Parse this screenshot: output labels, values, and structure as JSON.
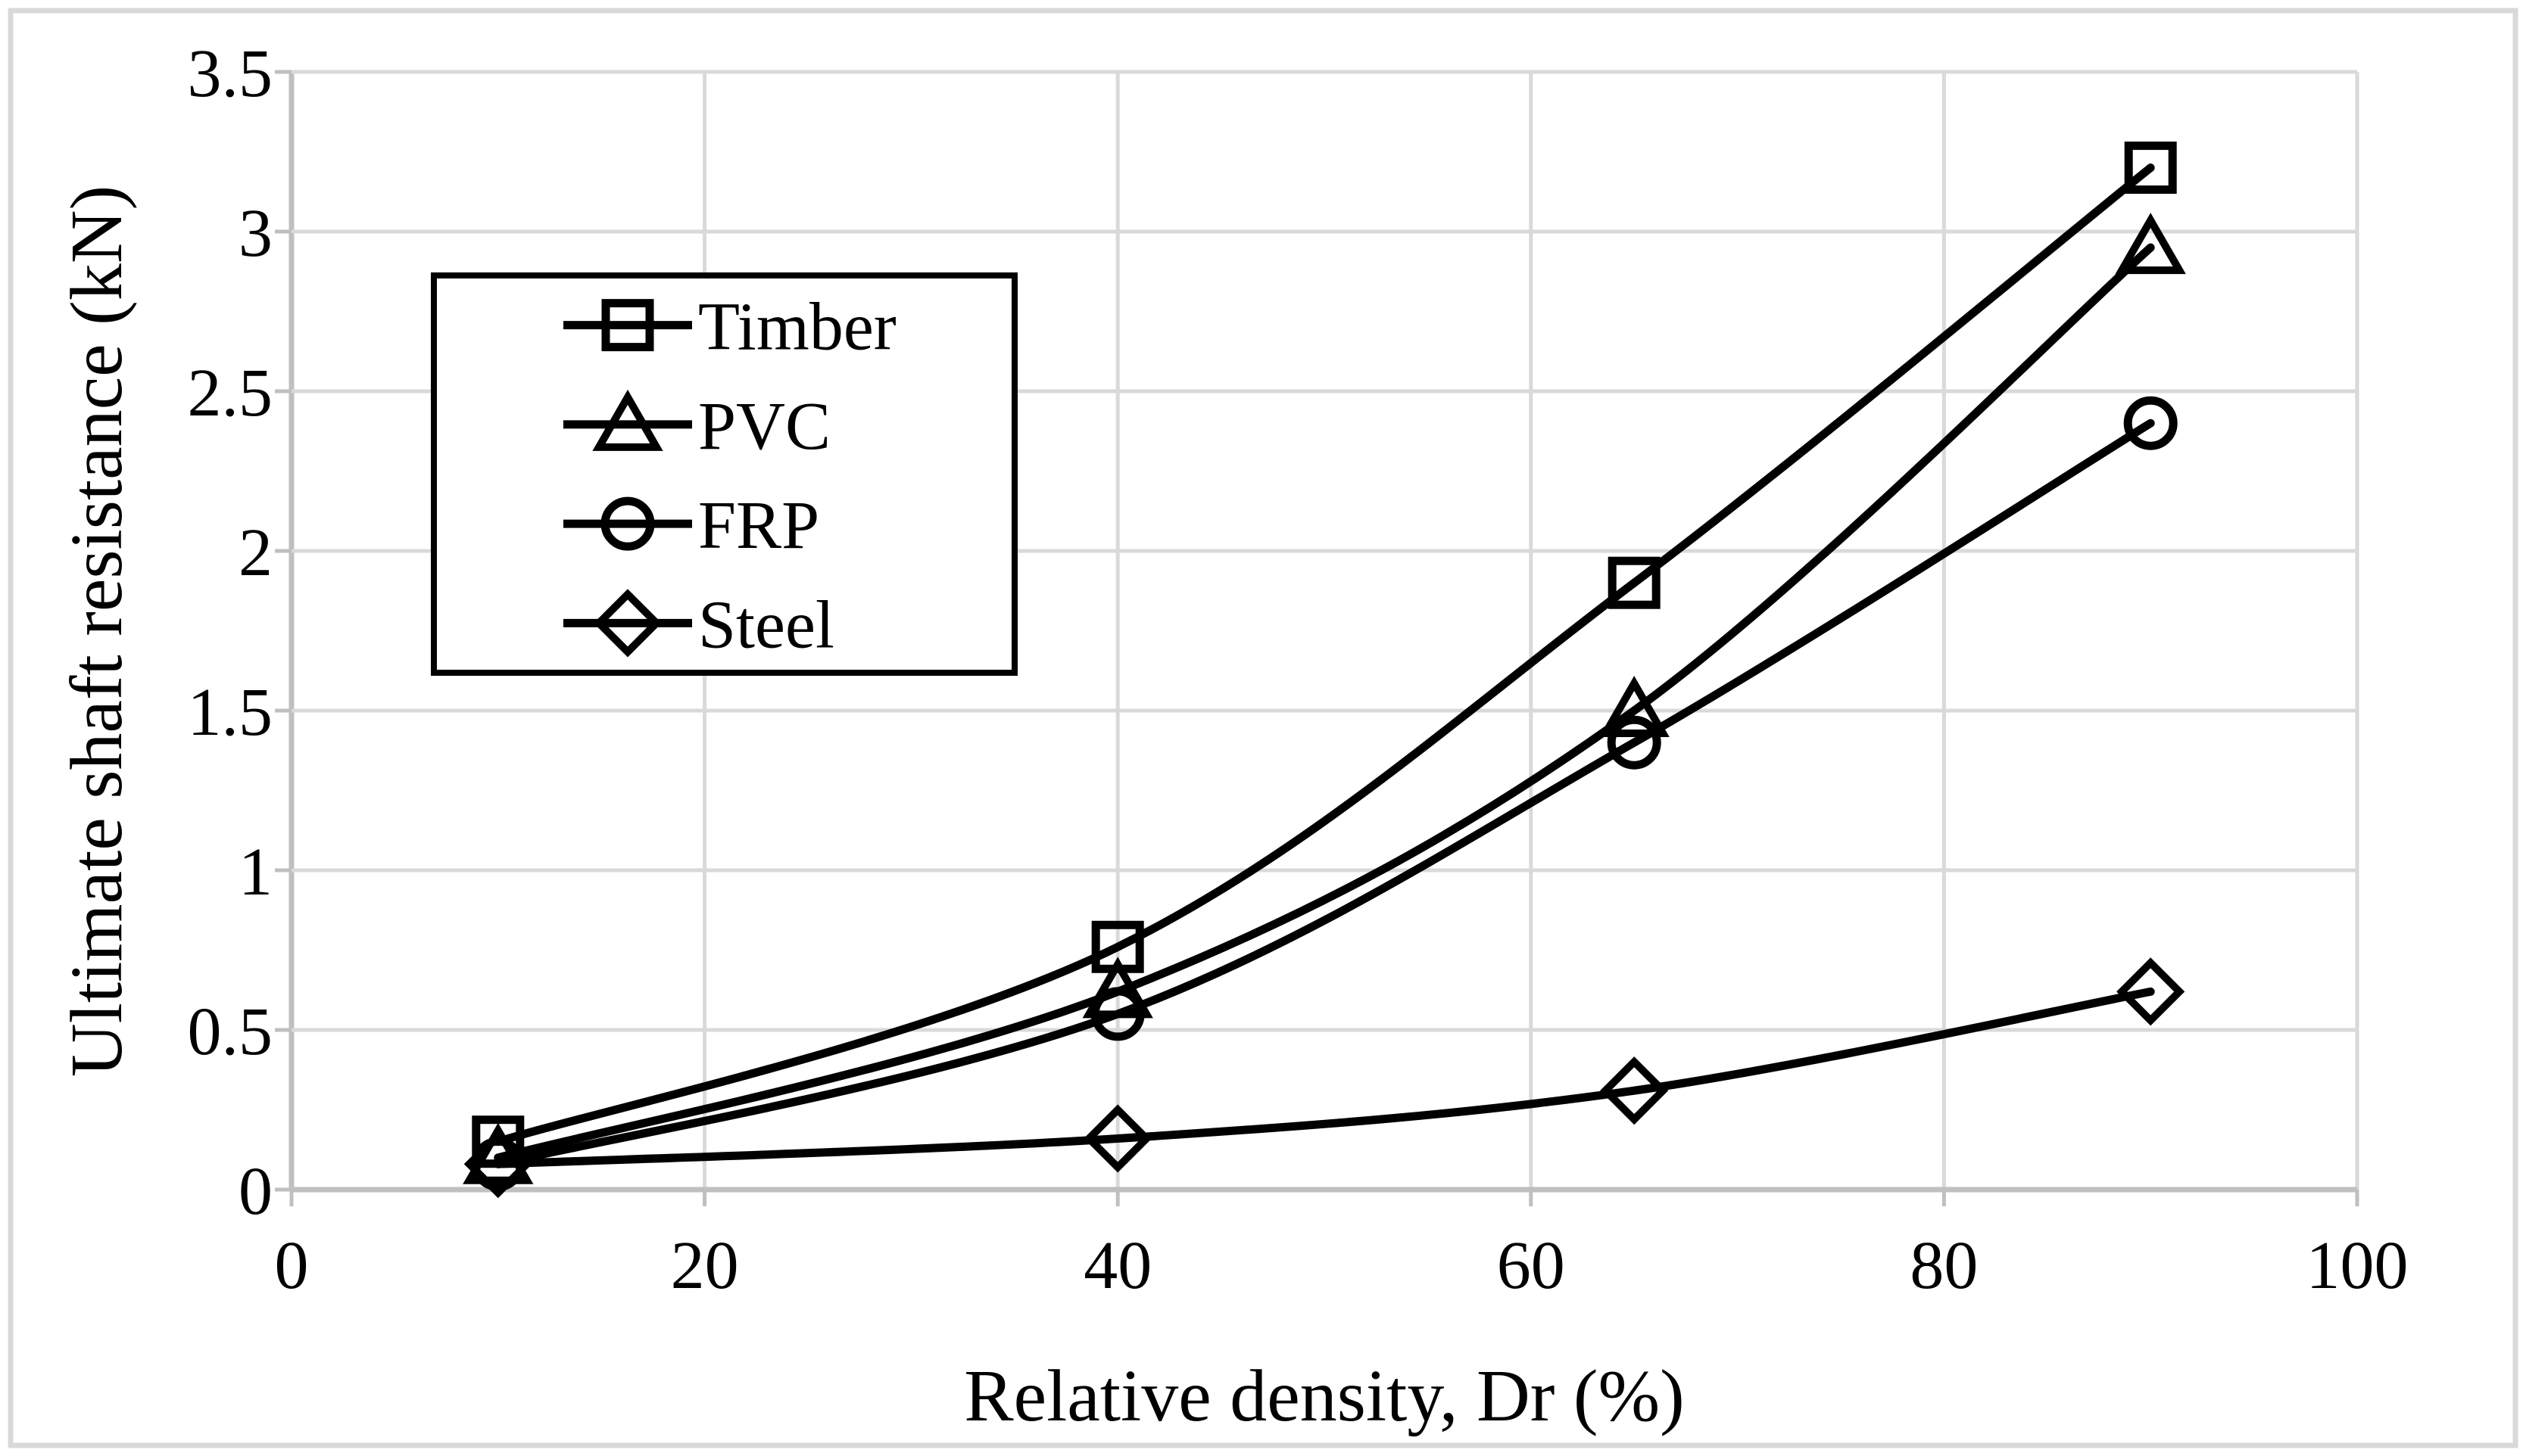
{
  "figure": {
    "background": "#ffffff",
    "border_color": "#d9d9d9"
  },
  "colors": {
    "series_line": "#000000",
    "text": "#000000",
    "gridline": "#d9d9d9",
    "axis_line": "#bfbfbf",
    "legend_border": "#000000",
    "legend_fill": "#ffffff"
  },
  "chart_data": {
    "type": "line",
    "title": "",
    "xlabel": "Relative density, Dr (%)",
    "ylabel": "Ultimate shaft resistance (kN)",
    "xlim": [
      0,
      100
    ],
    "ylim": [
      0,
      3.5
    ],
    "grid": "both",
    "legend_position": "upper-left-inside",
    "x_tick_values": [
      0,
      20,
      40,
      60,
      80,
      100
    ],
    "x_tick_labels": [
      "0",
      "20",
      "40",
      "60",
      "80",
      "100"
    ],
    "y_tick_values": [
      0,
      0.5,
      1,
      1.5,
      2,
      2.5,
      3,
      3.5
    ],
    "y_tick_labels": [
      "0",
      "0.5",
      "1",
      "1.5",
      "2",
      "2.5",
      "3",
      "3.5"
    ],
    "x": [
      10,
      40,
      65,
      90
    ],
    "series": [
      {
        "name": "Timber",
        "marker": "square",
        "values": [
          0.15,
          0.76,
          1.9,
          3.2
        ]
      },
      {
        "name": "PVC",
        "marker": "triangle",
        "values": [
          0.1,
          0.62,
          1.5,
          2.95
        ]
      },
      {
        "name": "FRP",
        "marker": "circle",
        "values": [
          0.08,
          0.55,
          1.4,
          2.4
        ]
      },
      {
        "name": "Steel",
        "marker": "diamond",
        "values": [
          0.08,
          0.16,
          0.31,
          0.62
        ]
      }
    ]
  }
}
